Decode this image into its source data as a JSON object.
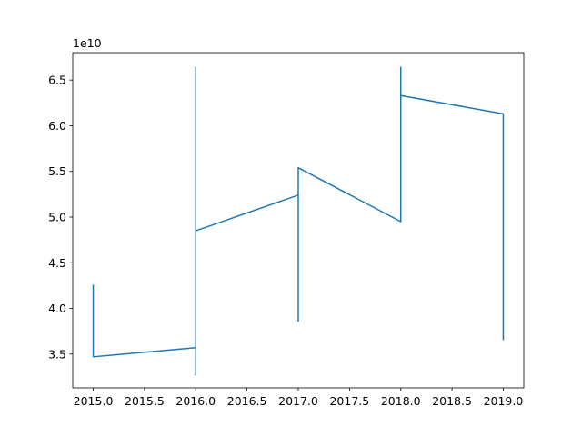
{
  "chart_data": {
    "type": "line",
    "title": "",
    "xlabel": "",
    "ylabel": "",
    "y_offset_label": "1e10",
    "xlim": [
      2014.8,
      2019.2
    ],
    "ylim": [
      3.13,
      6.8
    ],
    "x_ticks": [
      2015.0,
      2015.5,
      2016.0,
      2016.5,
      2017.0,
      2017.5,
      2018.0,
      2018.5,
      2019.0
    ],
    "x_tick_labels": [
      "2015.0",
      "2015.5",
      "2016.0",
      "2016.5",
      "2017.0",
      "2017.5",
      "2018.0",
      "2018.5",
      "2019.0"
    ],
    "y_ticks": [
      3.5,
      4.0,
      4.5,
      5.0,
      5.5,
      6.0,
      6.5
    ],
    "y_tick_labels": [
      "3.5",
      "4.0",
      "4.5",
      "5.0",
      "5.5",
      "6.0",
      "6.5"
    ],
    "grid": false,
    "legend": "none",
    "line_color": "#1f77b4",
    "series": [
      {
        "x": [
          2015,
          2015,
          2015,
          2015,
          2015,
          2015,
          2016,
          2016,
          2016,
          2016,
          2016,
          2016,
          2016,
          2016,
          2017,
          2017,
          2017,
          2017,
          2017,
          2018,
          2018,
          2018,
          2018,
          2018,
          2018,
          2018,
          2019,
          2019,
          2019,
          2019,
          2019,
          2019
        ],
        "y": [
          4.26,
          3.85,
          4.24,
          3.9,
          4.15,
          3.47,
          3.57,
          3.27,
          3.76,
          3.3,
          6.64,
          5.0,
          6.6,
          4.85,
          5.24,
          3.86,
          4.65,
          5.2,
          5.54,
          4.95,
          5.55,
          4.96,
          6.64,
          6.12,
          6.6,
          6.33,
          6.13,
          3.86,
          4.07,
          3.66,
          4.03,
          3.9
        ]
      }
    ]
  }
}
